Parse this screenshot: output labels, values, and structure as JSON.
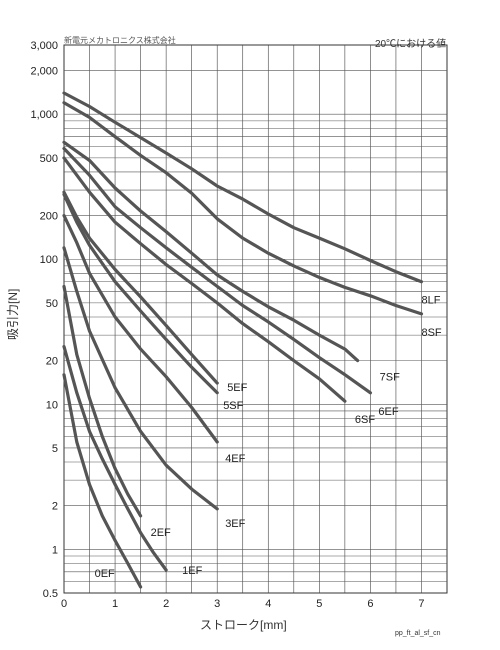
{
  "header": {
    "company": "新電元メカトロニクス株式会社",
    "condition": "20℃における値"
  },
  "footer_code": "pp_ft_al_sf_cn",
  "chart_data": {
    "type": "line",
    "xlabel": "ストローク[mm]",
    "ylabel": "吸引力[N]",
    "xlim": [
      0,
      7.5
    ],
    "ylim": [
      0.5,
      3000
    ],
    "yscale": "log",
    "grid": true,
    "line_color": "#555555",
    "x_ticks": [
      "0",
      "1",
      "2",
      "3",
      "4",
      "5",
      "6",
      "7"
    ],
    "x_tick_values": [
      0,
      1,
      2,
      3,
      4,
      5,
      6,
      7
    ],
    "y_ticks": [
      "0.5",
      "1",
      "2",
      "5",
      "10",
      "20",
      "50",
      "100",
      "200",
      "500",
      "1,000",
      "2,000",
      "3,000"
    ],
    "y_tick_values": [
      0.5,
      1,
      2,
      5,
      10,
      20,
      50,
      100,
      200,
      500,
      1000,
      2000,
      3000
    ],
    "series": [
      {
        "name": "8LF",
        "x": [
          0,
          0.5,
          1,
          1.5,
          2,
          2.5,
          3,
          3.5,
          4,
          4.5,
          5,
          5.5,
          6,
          6.5,
          7
        ],
        "y": [
          1400,
          1130,
          880,
          690,
          540,
          420,
          320,
          260,
          205,
          165,
          140,
          118,
          98,
          82,
          70
        ]
      },
      {
        "name": "8SF",
        "x": [
          0,
          0.5,
          1,
          1.5,
          2,
          2.5,
          3,
          3.5,
          4,
          4.5,
          5,
          5.5,
          6,
          6.5,
          7
        ],
        "y": [
          1200,
          950,
          700,
          520,
          395,
          285,
          190,
          140,
          110,
          90,
          75,
          64,
          56,
          48,
          42
        ]
      },
      {
        "name": "7SF",
        "x": [
          0,
          0.5,
          1,
          1.5,
          2,
          2.5,
          3,
          3.5,
          4,
          4.5,
          5,
          5.5,
          5.75
        ],
        "y": [
          640,
          480,
          310,
          215,
          155,
          110,
          78,
          60,
          47,
          38,
          30,
          24,
          20
        ]
      },
      {
        "name": "6EF",
        "x": [
          0,
          0.5,
          1,
          1.5,
          2,
          2.5,
          3,
          3.5,
          4,
          4.5,
          5,
          5.5,
          6
        ],
        "y": [
          580,
          380,
          230,
          165,
          120,
          88,
          65,
          48,
          37,
          28,
          21,
          16,
          12
        ]
      },
      {
        "name": "6SF",
        "x": [
          0,
          0.5,
          1,
          1.5,
          2,
          2.5,
          3,
          3.5,
          4,
          4.5,
          5,
          5.5
        ],
        "y": [
          500,
          290,
          180,
          128,
          92,
          68,
          50,
          36,
          27,
          20,
          15,
          10.5
        ]
      },
      {
        "name": "5EF",
        "x": [
          0,
          0.25,
          0.5,
          1,
          1.5,
          2,
          2.5,
          3
        ],
        "y": [
          290,
          195,
          140,
          85,
          55,
          35,
          22,
          14
        ]
      },
      {
        "name": "5SF",
        "x": [
          0,
          0.25,
          0.5,
          1,
          1.5,
          2,
          2.5,
          3
        ],
        "y": [
          280,
          180,
          125,
          70,
          44,
          28,
          18,
          12
        ]
      },
      {
        "name": "4EF",
        "x": [
          0,
          0.25,
          0.5,
          1,
          1.5,
          2,
          2.5,
          3
        ],
        "y": [
          200,
          130,
          80,
          40,
          24,
          15.5,
          9.5,
          5.5
        ]
      },
      {
        "name": "3EF",
        "x": [
          0,
          0.25,
          0.5,
          1,
          1.5,
          2,
          2.5,
          3
        ],
        "y": [
          120,
          60,
          32,
          13,
          6.5,
          3.8,
          2.6,
          1.9
        ]
      },
      {
        "name": "2EF",
        "x": [
          0,
          0.25,
          0.5,
          0.75,
          1,
          1.25,
          1.5
        ],
        "y": [
          65,
          22,
          11,
          6,
          3.6,
          2.4,
          1.7
        ]
      },
      {
        "name": "1EF",
        "x": [
          0,
          0.25,
          0.5,
          0.75,
          1,
          1.25,
          1.5,
          1.75,
          2
        ],
        "y": [
          25,
          12,
          6.5,
          4.2,
          2.8,
          1.9,
          1.3,
          0.95,
          0.72
        ]
      },
      {
        "name": "0EF",
        "x": [
          0,
          0.25,
          0.5,
          0.75,
          1,
          1.25,
          1.5
        ],
        "y": [
          16,
          5.5,
          2.8,
          1.7,
          1.15,
          0.8,
          0.55
        ]
      }
    ]
  }
}
